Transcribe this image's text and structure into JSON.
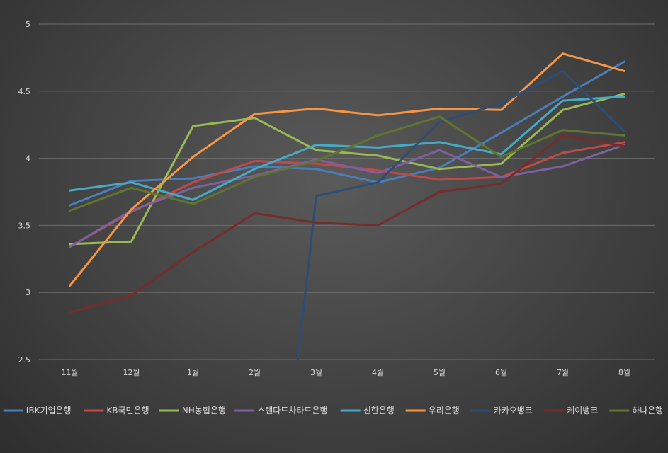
{
  "chart_data": {
    "type": "line",
    "title": "",
    "xlabel": "",
    "ylabel": "",
    "categories": [
      "11월",
      "12월",
      "1월",
      "2월",
      "3월",
      "4월",
      "5월",
      "6월",
      "7월",
      "8월"
    ],
    "ylim": [
      2.5,
      5
    ],
    "yticks": [
      "2.5",
      "3",
      "3.5",
      "4",
      "4.5",
      "5"
    ],
    "grid": "horizontal",
    "legend": "bottom",
    "series": [
      {
        "name": "IBK기업은행",
        "color": "#4a7ebb",
        "values": [
          3.65,
          3.83,
          3.85,
          3.94,
          3.92,
          3.82,
          3.93,
          4.19,
          4.46,
          4.72
        ]
      },
      {
        "name": "KB국민은행",
        "color": "#be4b48",
        "values": [
          3.34,
          3.6,
          3.82,
          3.98,
          3.96,
          3.91,
          3.84,
          3.86,
          4.04,
          4.12
        ]
      },
      {
        "name": "NH농협은행",
        "color": "#98b954",
        "values": [
          3.36,
          3.38,
          4.24,
          4.3,
          4.06,
          4.02,
          3.92,
          3.96,
          4.36,
          4.48
        ]
      },
      {
        "name": "스탠다드차타드은행",
        "color": "#7d60a0",
        "values": [
          3.34,
          3.61,
          3.78,
          3.87,
          3.99,
          3.89,
          4.06,
          3.86,
          3.94,
          4.1
        ]
      },
      {
        "name": "신한은행",
        "color": "#46aac5",
        "values": [
          3.76,
          3.82,
          3.69,
          3.92,
          4.1,
          4.08,
          4.12,
          4.03,
          4.43,
          4.46
        ]
      },
      {
        "name": "우리은행",
        "color": "#f69546",
        "values": [
          3.05,
          3.62,
          4.01,
          4.33,
          4.37,
          4.32,
          4.37,
          4.36,
          4.78,
          4.65
        ]
      },
      {
        "name": "카카오뱅크",
        "color": "#2c4d75",
        "values": [
          null,
          null,
          null,
          null,
          3.72,
          3.82,
          4.27,
          4.41,
          4.65,
          4.2
        ],
        "start": 2.5
      },
      {
        "name": "케이뱅크",
        "color": "#772c2a",
        "values": [
          2.85,
          2.98,
          3.3,
          3.59,
          3.52,
          3.5,
          3.75,
          3.81,
          4.17,
          4.09
        ]
      },
      {
        "name": "하나은행",
        "color": "#5f7530",
        "values": [
          3.61,
          3.78,
          3.66,
          3.86,
          3.98,
          4.17,
          4.31,
          4.01,
          4.21,
          4.17
        ]
      }
    ]
  }
}
